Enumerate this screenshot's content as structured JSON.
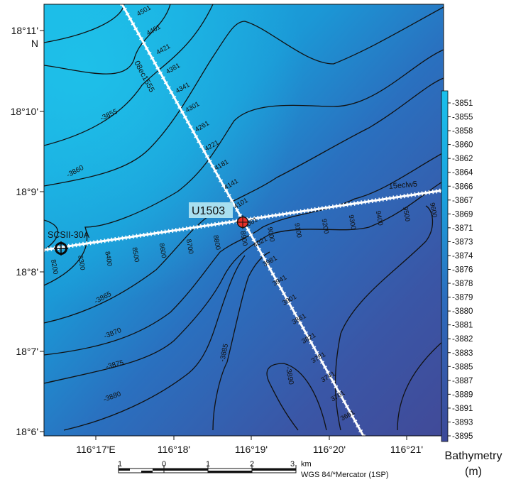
{
  "map": {
    "lat_labels": [
      {
        "deg": "18°11'",
        "hemi": "N"
      },
      {
        "deg": "18°10'",
        "hemi": ""
      },
      {
        "deg": "18°9'",
        "hemi": ""
      },
      {
        "deg": "18°8'",
        "hemi": ""
      },
      {
        "deg": "18°7'",
        "hemi": ""
      },
      {
        "deg": "18°6'",
        "hemi": ""
      }
    ],
    "lon_labels": [
      "116°17'E",
      "116°18'",
      "116°19'",
      "116°20'",
      "116°21'"
    ],
    "contours": [
      "-3855",
      "-3860",
      "-3865",
      "-3870",
      "-3875",
      "-3880",
      "-3885",
      "-3890"
    ],
    "sites": {
      "primary": "U1503",
      "secondary": "SCSII-30A"
    },
    "lines": {
      "diagonal": {
        "name": "08ec1555",
        "shotpoints": [
          "4501",
          "4461",
          "4421",
          "4381",
          "4341",
          "4301",
          "4261",
          "4221",
          "4181",
          "4141",
          "4101",
          "4061",
          "4021",
          "3981",
          "3941",
          "3901",
          "3861",
          "3821",
          "3781",
          "3741",
          "3701",
          "3661"
        ]
      },
      "crossline": {
        "name": "15eclw5",
        "shotpoints": [
          "8200",
          "8300",
          "8400",
          "8500",
          "8600",
          "8700",
          "8800",
          "8900",
          "9000",
          "9100",
          "9200",
          "9300",
          "9400",
          "9500",
          "9600"
        ]
      }
    },
    "colors": {
      "shallow": "#15b6e3",
      "deep": "#3f4a99",
      "site_marker": "#e8302a",
      "seismic_line": "#ffffff",
      "label_box": "#a8dff0"
    }
  },
  "colorbar": {
    "ticks": [
      "-3851",
      "-3855",
      "-3858",
      "-3860",
      "-3862",
      "-3864",
      "-3866",
      "-3867",
      "-3869",
      "-3871",
      "-3873",
      "-3874",
      "-3876",
      "-3878",
      "-3879",
      "-3880",
      "-3881",
      "-3882",
      "-3883",
      "-3885",
      "-3887",
      "-3889",
      "-3891",
      "-3893",
      "-3895"
    ],
    "title": "Bathymetry",
    "unit": "(m)"
  },
  "scalebar": {
    "ticks": [
      "1",
      "0",
      "1",
      "2",
      "3"
    ],
    "unit": "km",
    "projection": "WGS 84/*Mercator (1SP)"
  }
}
